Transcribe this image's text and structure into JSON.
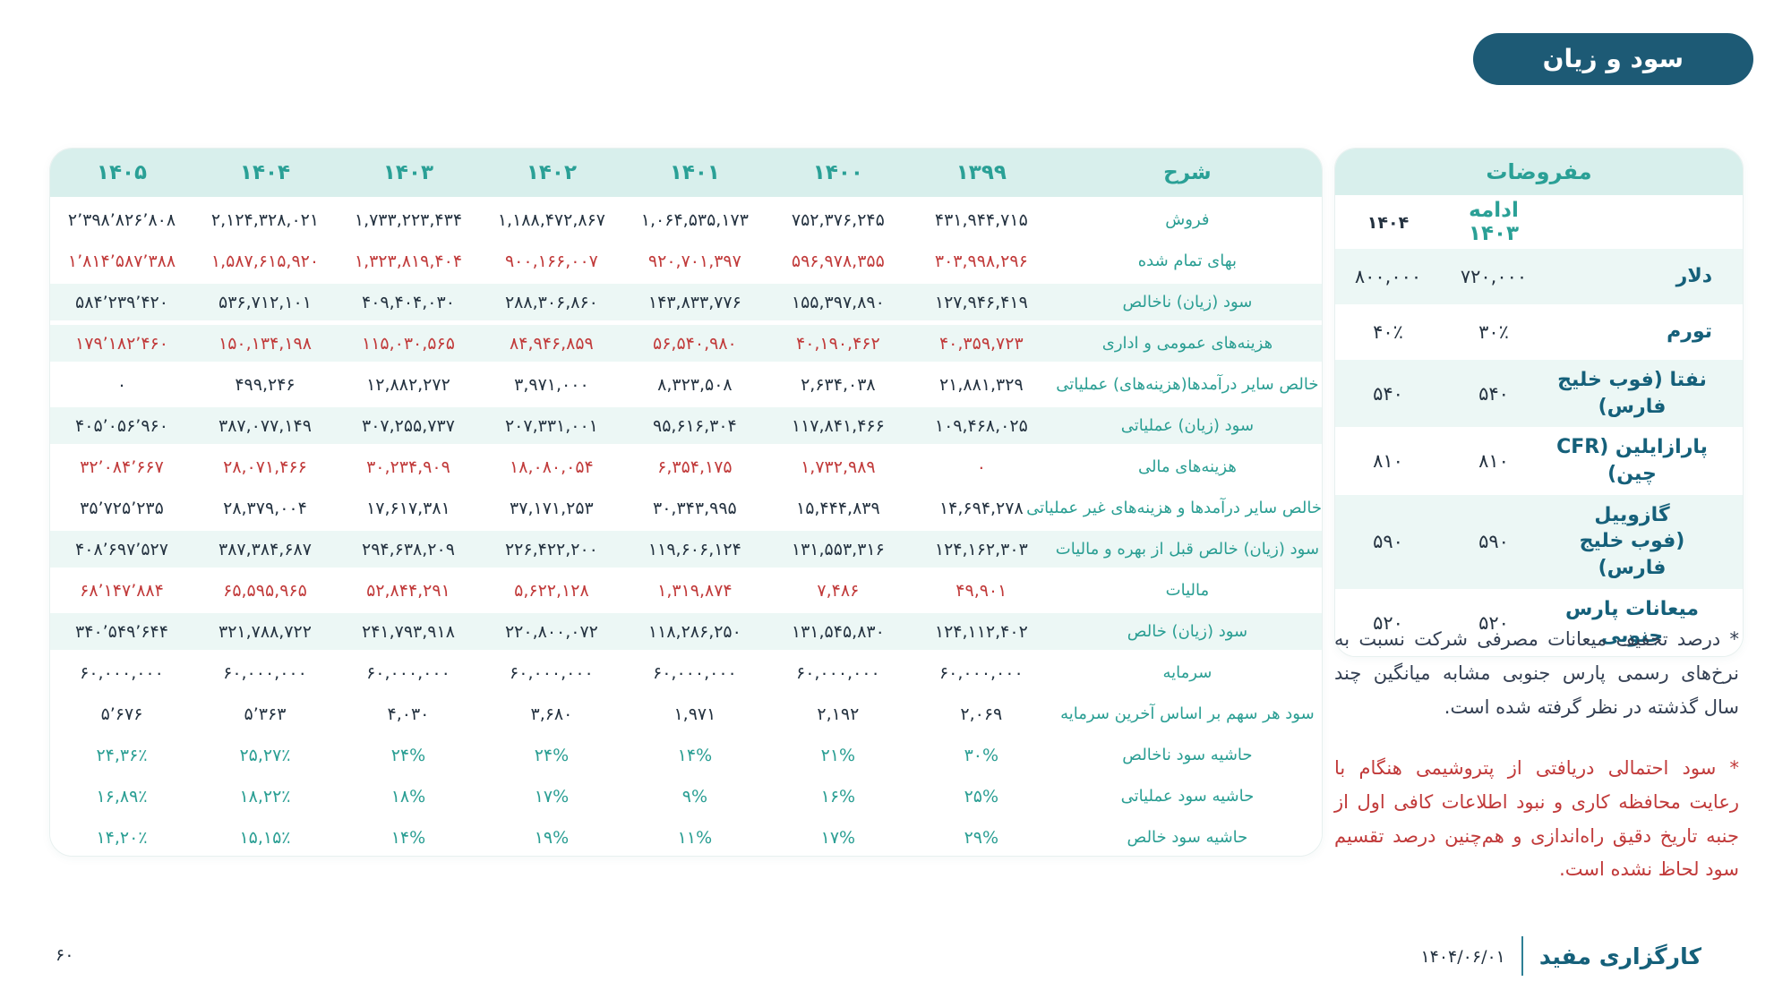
{
  "page": {
    "title_badge": "سود و زیان",
    "page_number": "۶۰"
  },
  "colors": {
    "accent_dark": "#1d5a75",
    "teal": "#2aa096",
    "header_band": "#d8efec",
    "row_tint": "#ecf7f5",
    "red": "#c13a3a",
    "dark_text": "#243240",
    "sidebar_label": "#15607a"
  },
  "income_table": {
    "desc_header": "شرح",
    "year_headers": [
      "۱۳۹۹",
      "۱۴۰۰",
      "۱۴۰۱",
      "۱۴۰۲",
      "۱۴۰۳",
      "۱۴۰۴",
      "۱۴۰۵"
    ],
    "rows": [
      {
        "label": "فروش",
        "style": "dark",
        "tint": false,
        "values": [
          "۴۳۱,۹۴۴,۷۱۵",
          "۷۵۲,۳۷۶,۲۴۵",
          "۱,۰۶۴,۵۳۵,۱۷۳",
          "۱,۱۸۸,۴۷۲,۸۶۷",
          "۱,۷۳۳,۲۲۳,۴۳۴",
          "۲,۱۲۴,۳۲۸,۰۲۱",
          "۲’۳۹۸’۸۲۶’۸۰۸"
        ]
      },
      {
        "label": "بهای تمام شده",
        "style": "red",
        "tint": false,
        "values": [
          "۳۰۳,۹۹۸,۲۹۶",
          "۵۹۶,۹۷۸,۳۵۵",
          "۹۲۰,۷۰۱,۳۹۷",
          "۹۰۰,۱۶۶,۰۰۷",
          "۱,۳۲۳,۸۱۹,۴۰۴",
          "۱,۵۸۷,۶۱۵,۹۲۰",
          "۱’۸۱۴’۵۸۷’۳۸۸"
        ]
      },
      {
        "label": "سود (زیان) ناخالص",
        "style": "dark",
        "tint": true,
        "values": [
          "۱۲۷,۹۴۶,۴۱۹",
          "۱۵۵,۳۹۷,۸۹۰",
          "۱۴۳,۸۳۳,۷۷۶",
          "۲۸۸,۳۰۶,۸۶۰",
          "۴۰۹,۴۰۴,۰۳۰",
          "۵۳۶,۷۱۲,۱۰۱",
          "۵۸۴’۲۳۹’۴۲۰"
        ]
      },
      {
        "label": "هزینه‌های عمومی و اداری",
        "style": "red",
        "tint": true,
        "values": [
          "۴۰,۳۵۹,۷۲۳",
          "۴۰,۱۹۰,۴۶۲",
          "۵۶,۵۴۰,۹۸۰",
          "۸۴,۹۴۶,۸۵۹",
          "۱۱۵,۰۳۰,۵۶۵",
          "۱۵۰,۱۳۴,۱۹۸",
          "۱۷۹’۱۸۲’۴۶۰"
        ]
      },
      {
        "label": "خالص سایر درآمدها(هزینه‌های) عملیاتی",
        "style": "dark",
        "tint": false,
        "values": [
          "۲۱,۸۸۱,۳۲۹",
          "۲,۶۳۴,۰۳۸",
          "۸,۳۲۳,۵۰۸",
          "۳,۹۷۱,۰۰۰",
          "۱۲,۸۸۲,۲۷۲",
          "۴۹۹,۲۴۶",
          "۰"
        ]
      },
      {
        "label": "سود (زیان) عملیاتی",
        "style": "dark",
        "tint": true,
        "values": [
          "۱۰۹,۴۶۸,۰۲۵",
          "۱۱۷,۸۴۱,۴۶۶",
          "۹۵,۶۱۶,۳۰۴",
          "۲۰۷,۳۳۱,۰۰۱",
          "۳۰۷,۲۵۵,۷۳۷",
          "۳۸۷,۰۷۷,۱۴۹",
          "۴۰۵’۰۵۶’۹۶۰"
        ]
      },
      {
        "label": "هزینه‌های مالی",
        "style": "red",
        "tint": false,
        "values": [
          "۰",
          "۱,۷۳۲,۹۸۹",
          "۶,۳۵۴,۱۷۵",
          "۱۸,۰۸۰,۰۵۴",
          "۳۰,۲۳۴,۹۰۹",
          "۲۸,۰۷۱,۴۶۶",
          "۳۲’۰۸۴’۶۶۷"
        ]
      },
      {
        "label": "خالص سایر درآمدها و هزینه‌های غیر عملیاتی",
        "style": "dark",
        "tint": false,
        "values": [
          "۱۴,۶۹۴,۲۷۸",
          "۱۵,۴۴۴,۸۳۹",
          "۳۰,۳۴۳,۹۹۵",
          "۳۷,۱۷۱,۲۵۳",
          "۱۷,۶۱۷,۳۸۱",
          "۲۸,۳۷۹,۰۰۴",
          "۳۵’۷۲۵’۲۳۵"
        ]
      },
      {
        "label": "سود (زیان) خالص قبل از بهره و مالیات",
        "style": "dark",
        "tint": true,
        "values": [
          "۱۲۴,۱۶۲,۳۰۳",
          "۱۳۱,۵۵۳,۳۱۶",
          "۱۱۹,۶۰۶,۱۲۴",
          "۲۲۶,۴۲۲,۲۰۰",
          "۲۹۴,۶۳۸,۲۰۹",
          "۳۸۷,۳۸۴,۶۸۷",
          "۴۰۸’۶۹۷’۵۲۷"
        ]
      },
      {
        "label": "مالیات",
        "style": "red",
        "tint": false,
        "values": [
          "۴۹,۹۰۱",
          "۷,۴۸۶",
          "۱,۳۱۹,۸۷۴",
          "۵,۶۲۲,۱۲۸",
          "۵۲,۸۴۴,۲۹۱",
          "۶۵,۵۹۵,۹۶۵",
          "۶۸’۱۴۷’۸۸۴"
        ]
      },
      {
        "label": "سود (زیان) خالص",
        "style": "dark",
        "tint": true,
        "values": [
          "۱۲۴,۱۱۲,۴۰۲",
          "۱۳۱,۵۴۵,۸۳۰",
          "۱۱۸,۲۸۶,۲۵۰",
          "۲۲۰,۸۰۰,۰۷۲",
          "۲۴۱,۷۹۳,۹۱۸",
          "۳۲۱,۷۸۸,۷۲۲",
          "۳۴۰’۵۴۹’۶۴۴"
        ]
      },
      {
        "label": "سرمایه",
        "style": "dark",
        "tint": false,
        "values": [
          "۶۰,۰۰۰,۰۰۰",
          "۶۰,۰۰۰,۰۰۰",
          "۶۰,۰۰۰,۰۰۰",
          "۶۰,۰۰۰,۰۰۰",
          "۶۰,۰۰۰,۰۰۰",
          "۶۰,۰۰۰,۰۰۰",
          "۶۰,۰۰۰,۰۰۰"
        ]
      },
      {
        "label": "سود هر سهم بر اساس آخرین سرمایه",
        "style": "dark",
        "tint": false,
        "values": [
          "۲,۰۶۹",
          "۲,۱۹۲",
          "۱,۹۷۱",
          "۳,۶۸۰",
          "۴,۰۳۰",
          "۵’۳۶۳",
          "۵’۶۷۶"
        ]
      },
      {
        "label": "حاشیه سود ناخالص",
        "style": "teal",
        "tint": false,
        "values": [
          "۳۰%",
          "۲۱%",
          "۱۴%",
          "۲۴%",
          "۲۴%",
          "۲۵,۲۷٪",
          "۲۴,۳۶٪"
        ]
      },
      {
        "label": "حاشیه سود عملیاتی",
        "style": "teal",
        "tint": false,
        "values": [
          "۲۵%",
          "۱۶%",
          "۹%",
          "۱۷%",
          "۱۸%",
          "۱۸,۲۲٪",
          "۱۶,۸۹٪"
        ]
      },
      {
        "label": "حاشیه سود خالص",
        "style": "teal",
        "tint": false,
        "values": [
          "۲۹%",
          "۱۷%",
          "۱۱%",
          "۱۹%",
          "۱۴%",
          "۱۵,۱۵٪",
          "۱۴,۲۰٪"
        ]
      }
    ]
  },
  "assumptions": {
    "title": "مفروضات",
    "col_1403": "ادامه ۱۴۰۳",
    "col_1404": "۱۴۰۴",
    "rows": [
      {
        "label": "دلار",
        "label2": "",
        "v1403": "۷۲۰,۰۰۰",
        "v1404": "۸۰۰,۰۰۰",
        "tint": true
      },
      {
        "label": "تورم",
        "label2": "",
        "v1403": "۳۰٪",
        "v1404": "۴۰٪",
        "tint": false
      },
      {
        "label": "نفتا (فوب خلیج فارس)",
        "label2": "",
        "v1403": "۵۴۰",
        "v1404": "۵۴۰",
        "tint": true
      },
      {
        "label": "پارازایلین (CFR چین)",
        "label2": "",
        "v1403": "۸۱۰",
        "v1404": "۸۱۰",
        "tint": false
      },
      {
        "label": "گازوییل",
        "label2": "(فوب خلیج فارس)",
        "v1403": "۵۹۰",
        "v1404": "۵۹۰",
        "tint": true
      },
      {
        "label": "میعانات پارس جنوبی",
        "label2": "",
        "v1403": "۵۲۰",
        "v1404": "۵۲۰",
        "tint": false
      }
    ]
  },
  "footnotes": {
    "condensate": "* درصد تخفیف میعانات مصرفی شرکت نسبت به نرخ‌های رسمی پارس جنوبی مشابه میانگین چند سال گذشته در نظر گرفته شده است.",
    "hengam": "* سود احتمالی دریافتی از پتروشیمی هنگام با رعایت محافظه کاری و نبود اطلاعات کافی اول از جنبه تاریخ دقیق راه‌اندازی و هم‌چنین درصد تقسیم سود لحاظ نشده است."
  },
  "footer": {
    "brand": "کارگزاری مفید",
    "date": "۱۴۰۴/۰۶/۰۱"
  }
}
